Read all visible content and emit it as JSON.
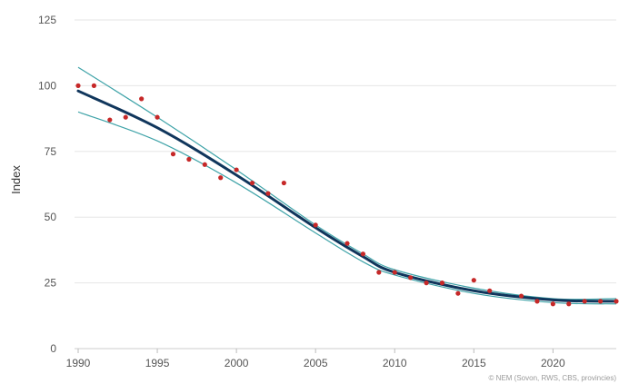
{
  "chart_data": {
    "type": "line",
    "xlabel": "",
    "ylabel": "Index",
    "xlim": [
      1990,
      2024
    ],
    "ylim": [
      0,
      125
    ],
    "xticks": [
      1990,
      1995,
      2000,
      2005,
      2010,
      2015,
      2020
    ],
    "yticks": [
      0,
      25,
      50,
      75,
      100,
      125
    ],
    "grid": "horizontal",
    "credit": "© NEM (Sovon, RWS, CBS, provincies)",
    "colors": {
      "points": "#c62828",
      "trend": "#10365c",
      "band": "#3fa3a8",
      "grid": "#e6e6e6"
    },
    "series": [
      {
        "kind": "points",
        "x": [
          1990,
          1991,
          1992,
          1993,
          1994,
          1995,
          1996,
          1997,
          1998,
          1999,
          2000,
          2001,
          2002,
          2003,
          2005,
          2007,
          2008,
          2009,
          2010,
          2011,
          2012,
          2013,
          2014,
          2015,
          2016,
          2018,
          2019,
          2020,
          2021,
          2022,
          2023,
          2024
        ],
        "y": [
          100,
          100,
          87,
          88,
          95,
          88,
          74,
          72,
          70,
          65,
          68,
          63,
          59,
          63,
          47,
          40,
          36,
          29,
          29,
          27,
          25,
          25,
          21,
          26,
          22,
          20,
          18,
          17,
          17,
          18,
          18,
          18
        ]
      },
      {
        "kind": "trend",
        "x": [
          1990,
          1995,
          2000,
          2005,
          2008,
          2010,
          2015,
          2020,
          2024
        ],
        "y": [
          98,
          84,
          66,
          46,
          35,
          29,
          22,
          18.5,
          18
        ]
      },
      {
        "kind": "upper-band",
        "x": [
          1990,
          1995,
          2000,
          2005,
          2008,
          2010,
          2015,
          2020,
          2024
        ],
        "y": [
          107,
          88,
          68,
          47,
          36,
          30,
          23,
          19,
          19
        ]
      },
      {
        "kind": "lower-band",
        "x": [
          1990,
          1995,
          2000,
          2005,
          2008,
          2010,
          2015,
          2020,
          2024
        ],
        "y": [
          90,
          79,
          63,
          44,
          33,
          28,
          21,
          17.5,
          17
        ]
      }
    ]
  }
}
